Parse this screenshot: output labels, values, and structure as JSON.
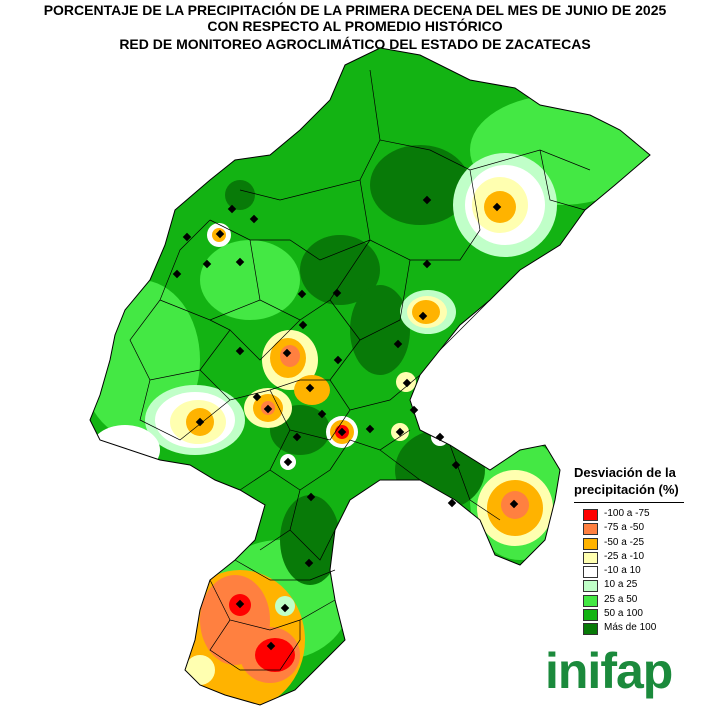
{
  "title": {
    "line1": "PORCENTAJE DE LA PRECIPITACIÓN DE LA PRIMERA DECENA DEL MES DE JUNIO DE 2025",
    "line2": "CON RESPECTO AL PROMEDIO HISTÓRICO",
    "line3": "RED DE MONITOREO AGROCLIMÁTICO DEL ESTADO DE ZACATECAS"
  },
  "legend": {
    "title_line1": "Desviación de la",
    "title_line2": "precipitación (%)",
    "items": [
      {
        "label": "-100 a -75",
        "color": "#ff0000"
      },
      {
        "label": "-75 a -50",
        "color": "#ff8040"
      },
      {
        "label": "-50 a -25",
        "color": "#ffb300"
      },
      {
        "label": "-25 a -10",
        "color": "#ffffb0"
      },
      {
        "label": "-10 a 10",
        "color": "#ffffff"
      },
      {
        "label": "10 a 25",
        "color": "#c0ffc8"
      },
      {
        "label": "25 a 50",
        "color": "#44e844"
      },
      {
        "label": "50 a 100",
        "color": "#13b313"
      },
      {
        "label": "Más de 100",
        "color": "#087a08"
      }
    ]
  },
  "logo": {
    "text": "inifap",
    "color": "#1b8a3c"
  }
}
